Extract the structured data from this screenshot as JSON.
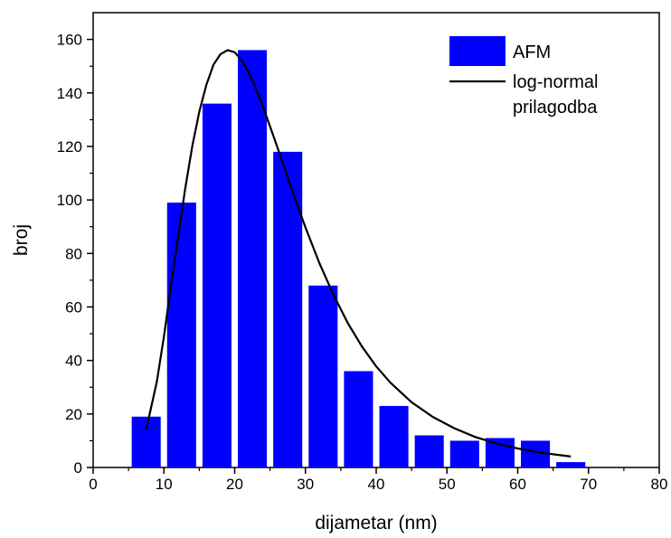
{
  "chart_data": {
    "type": "bar",
    "xlabel": "dijametar (nm)",
    "ylabel": "broj",
    "xlim": [
      0,
      80
    ],
    "ylim": [
      0,
      170
    ],
    "x_ticks": [
      "0",
      "10",
      "20",
      "30",
      "40",
      "50",
      "60",
      "70",
      "80"
    ],
    "y_ticks": [
      "0",
      "20",
      "40",
      "60",
      "80",
      "100",
      "120",
      "140",
      "160"
    ],
    "bar_color": "#0000ff",
    "bars": [
      {
        "x": 7.5,
        "value": 19
      },
      {
        "x": 12.5,
        "value": 99
      },
      {
        "x": 17.5,
        "value": 136
      },
      {
        "x": 22.5,
        "value": 156
      },
      {
        "x": 27.5,
        "value": 118
      },
      {
        "x": 32.5,
        "value": 68
      },
      {
        "x": 37.5,
        "value": 36
      },
      {
        "x": 42.5,
        "value": 23
      },
      {
        "x": 47.5,
        "value": 12
      },
      {
        "x": 52.5,
        "value": 10
      },
      {
        "x": 57.5,
        "value": 11
      },
      {
        "x": 62.5,
        "value": 10
      },
      {
        "x": 67.5,
        "value": 2
      }
    ],
    "bin_width": 5,
    "fit": {
      "type": "log-normal",
      "color": "#000000",
      "x": [
        7.5,
        9,
        10,
        11,
        12,
        13,
        14,
        15,
        16,
        17,
        18,
        19,
        20,
        21,
        22,
        23,
        24,
        25,
        26,
        28,
        30,
        32,
        34,
        36,
        38,
        40,
        42,
        45,
        48,
        51,
        54,
        57,
        60,
        63,
        67.5
      ],
      "y": [
        14.2,
        32,
        49,
        68,
        86,
        104,
        120,
        133,
        143,
        150.5,
        154.5,
        156,
        155.2,
        152.2,
        147.6,
        141.7,
        134.9,
        127.5,
        119.9,
        104.5,
        89.7,
        76.2,
        64.3,
        53.9,
        45.2,
        37.8,
        31.7,
        24.4,
        18.9,
        14.7,
        11.4,
        9.0,
        7.1,
        5.6,
        4.1
      ]
    },
    "legend": {
      "position": "top-right",
      "entries": [
        {
          "label": "AFM",
          "kind": "bar"
        },
        {
          "label": "log-normal\nprilagodba",
          "kind": "line"
        }
      ]
    }
  }
}
